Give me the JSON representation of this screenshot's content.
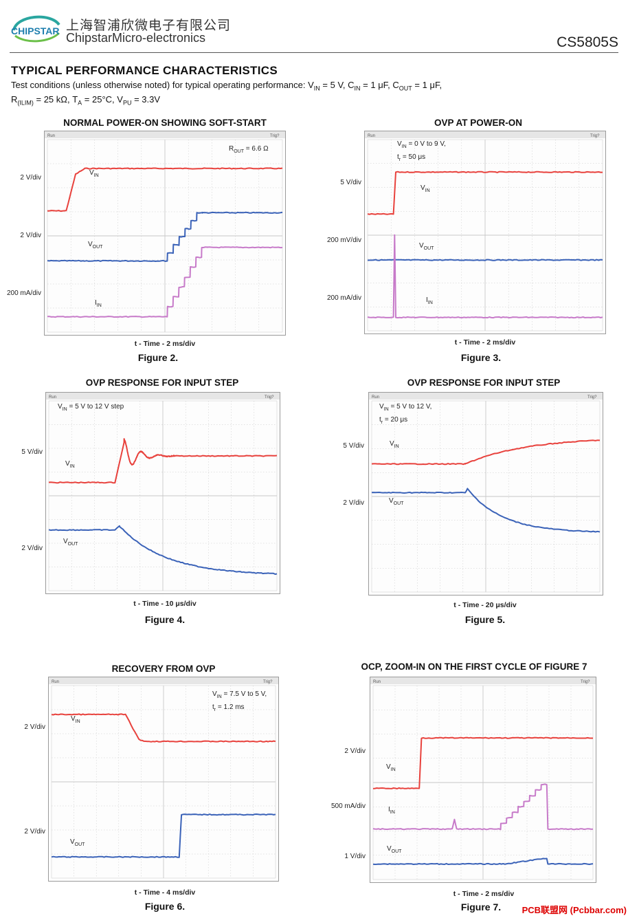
{
  "header": {
    "company_cn": "上海智浦欣微电子有限公司",
    "company_en": "ChipstarMicro-electronics",
    "logo_text": "CHIPSTAR",
    "part_number": "CS5805S"
  },
  "section": {
    "title": "TYPICAL PERFORMANCE CHARACTERISTICS",
    "conditions_line1": "Test conditions (unless otherwise noted) for typical operating performance: V",
    "cond_vin_sub": "IN",
    "cond_vin_val": " = 5 V, C",
    "cond_cin_sub": "IN",
    "cond_cin_val": " = 1 μF, C",
    "cond_cout_sub": "OUT",
    "cond_cout_val": " = 1 μF,",
    "conditions_line2a": "R",
    "cond_rilim_sub": "(ILIM)",
    "cond_rilim_val": " = 25 kΩ, T",
    "cond_ta_sub": "A",
    "cond_ta_val": " = 25°C, V",
    "cond_vpu_sub": "PU",
    "cond_vpu_val": " = 3.3V"
  },
  "figures": [
    {
      "title": "NORMAL POWER-ON SHOWING SOFT-START",
      "number": "Figure 2.",
      "time_label": "t - Time - 2 ms/div",
      "scales": [
        "2 V/div",
        "2 V/div",
        "200 mA/div"
      ],
      "annotation": {
        "main": "R",
        "sub": "OUT",
        "rest": " = 6.6 Ω"
      },
      "traces": {
        "vin": "V",
        "vin_sub": "IN",
        "vout": "V",
        "vout_sub": "OUT",
        "iin": "I",
        "iin_sub": "IN"
      }
    },
    {
      "title": "OVP AT POWER-ON",
      "number": "Figure 3.",
      "time_label": "t - Time - 2 ms/div",
      "scales": [
        "5 V/div",
        "200 mV/div",
        "200 mA/div"
      ],
      "annotation": {
        "line1_main": "V",
        "line1_sub": "IN",
        "line1_rest": " = 0 V to 9 V,",
        "line2_main": "t",
        "line2_sub": "r",
        "line2_rest": " = 50 μs"
      },
      "traces": {
        "vin": "V",
        "vin_sub": "IN",
        "vout": "V",
        "vout_sub": "OUT",
        "iin": "I",
        "iin_sub": "IN"
      }
    },
    {
      "title": "OVP RESPONSE FOR INPUT STEP",
      "number": "Figure 4.",
      "time_label": "t - Time - 10 μs/div",
      "scales": [
        "5 V/div",
        "2 V/div"
      ],
      "annotation": {
        "main": "V",
        "sub": "IN",
        "rest": " = 5 V to 12 V step"
      },
      "traces": {
        "vin": "V",
        "vin_sub": "IN",
        "vout": "V",
        "vout_sub": "OUT"
      }
    },
    {
      "title": "OVP RESPONSE FOR INPUT STEP",
      "number": "Figure 5.",
      "time_label": "t - Time - 20 μs/div",
      "scales": [
        "5 V/div",
        "2 V/div"
      ],
      "annotation": {
        "line1_main": "V",
        "line1_sub": "IN",
        "line1_rest": " = 5 V to 12 V,",
        "line2_main": "t",
        "line2_sub": "r",
        "line2_rest": " = 20 μs"
      },
      "traces": {
        "vin": "V",
        "vin_sub": "IN",
        "vout": "V",
        "vout_sub": "OUT"
      }
    },
    {
      "title": "RECOVERY FROM OVP",
      "number": "Figure 6.",
      "time_label": "t - Time - 4 ms/div",
      "scales": [
        "2 V/div",
        "2 V/div"
      ],
      "annotation": {
        "line1_main": "V",
        "line1_sub": "IN",
        "line1_rest": " = 7.5 V to 5 V,",
        "line2_main": "t",
        "line2_sub": "r",
        "line2_rest": " = 1.2 ms"
      },
      "traces": {
        "vin": "V",
        "vin_sub": "IN",
        "vout": "V",
        "vout_sub": "OUT"
      }
    },
    {
      "title": "OCP, ZOOM-IN ON THE FIRST CYCLE OF FIGURE 7",
      "number": "Figure 7.",
      "time_label": "t - Time - 2 ms/div",
      "scales": [
        "2 V/div",
        "500 mA/div",
        "1 V/div"
      ],
      "traces": {
        "vin": "V",
        "vin_sub": "IN",
        "vout": "V",
        "vout_sub": "OUT",
        "iin": "I",
        "iin_sub": "IN"
      }
    }
  ],
  "scope_ui": {
    "run": "Run",
    "trig": "Trig?"
  },
  "watermark": "PCB联盟网 (Pcbbar.com)",
  "colors": {
    "vin": "#e8413c",
    "vout": "#3a62b8",
    "iin": "#c77ac9",
    "grid": "#c8c8c8"
  }
}
